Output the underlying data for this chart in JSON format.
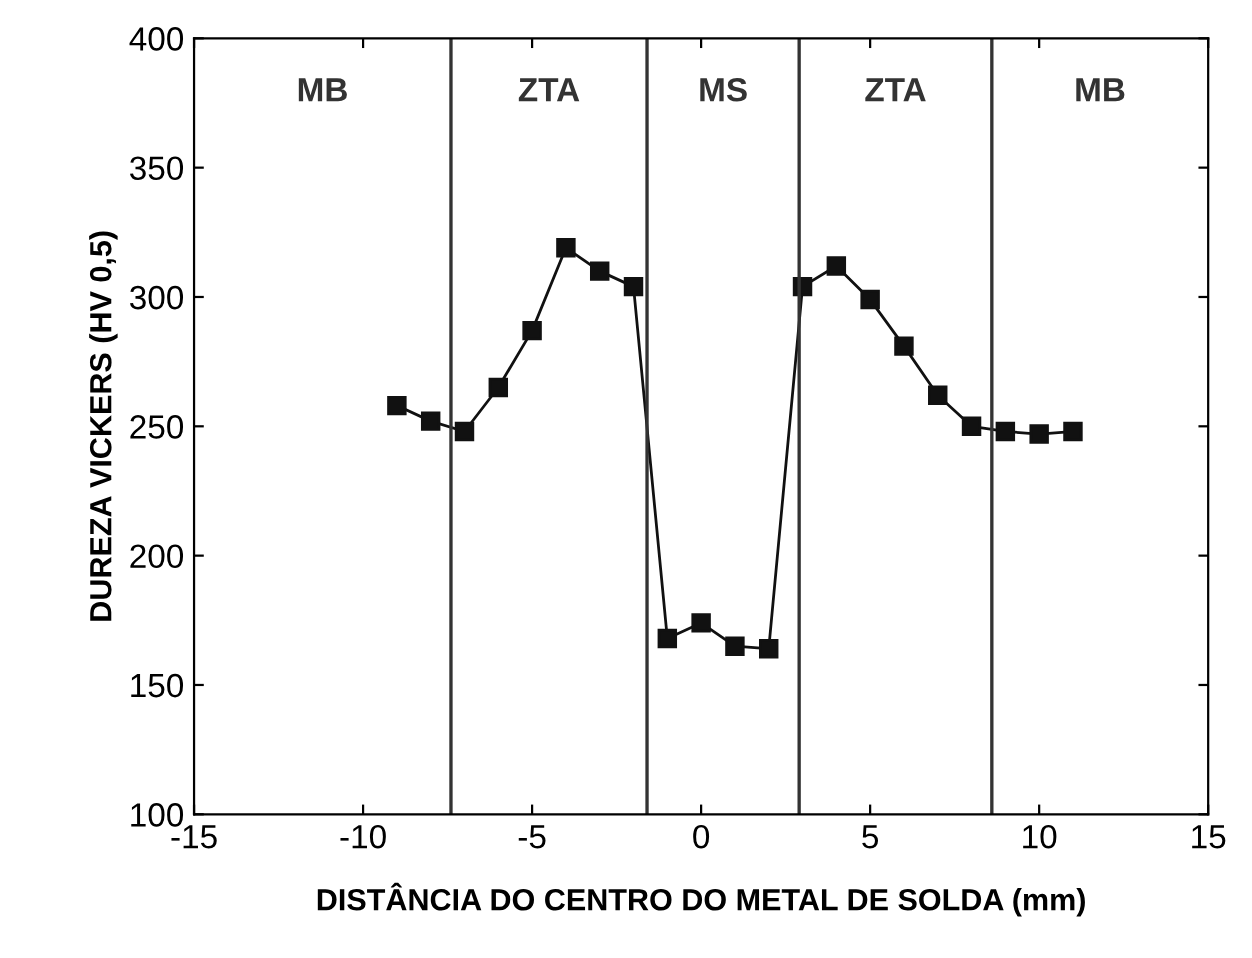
{
  "chart_data": {
    "type": "line",
    "xlabel": "DISTÂNCIA DO CENTRO DO METAL DE SOLDA (mm)",
    "ylabel": "DUREZA VICKERS (HV 0,5)",
    "x": [
      -9,
      -8,
      -7,
      -6,
      -5,
      -4,
      -3,
      -2,
      -1,
      0,
      1,
      2,
      3,
      4,
      5,
      6,
      7,
      8,
      9,
      10,
      11
    ],
    "series": [
      {
        "color": "#111111",
        "values": [
          258,
          252,
          248,
          265,
          287,
          319,
          310,
          304,
          168,
          174,
          165,
          164,
          304,
          312,
          299,
          281,
          262,
          250,
          248,
          247,
          248
        ]
      }
    ],
    "xlim": [
      -15,
      15
    ],
    "xticks": [
      -15,
      -10,
      -5,
      0,
      5,
      10,
      15
    ],
    "ylim": [
      100,
      400
    ],
    "yticks": [
      100,
      150,
      200,
      250,
      300,
      350,
      400
    ],
    "ref_lines": [
      {
        "axis": "x",
        "value": -7.4,
        "color": "#333333"
      },
      {
        "axis": "x",
        "value": -1.6,
        "color": "#333333"
      },
      {
        "axis": "x",
        "value": 2.9,
        "color": "#333333"
      },
      {
        "axis": "x",
        "value": 8.6,
        "color": "#333333"
      }
    ],
    "annotations": [
      "MB",
      "ZTA",
      "MS",
      "ZTA",
      "MB"
    ],
    "marker": "square",
    "grid": false,
    "legend": false
  }
}
